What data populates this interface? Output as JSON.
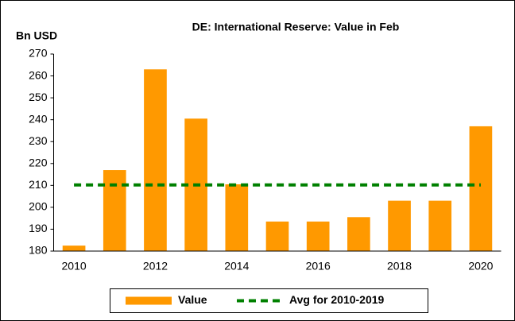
{
  "chart_data": {
    "type": "bar",
    "title": "DE: International Reserve: Value in Feb",
    "y_label": "Bn USD",
    "categories": [
      "2010",
      null,
      "2012",
      null,
      "2014",
      null,
      "2016",
      null,
      "2018",
      null,
      "2020"
    ],
    "series": [
      {
        "name": "Value",
        "type": "bar",
        "color": "#ff9900",
        "values": [
          182.5,
          217,
          263,
          240.5,
          210.5,
          193.5,
          193.5,
          195.5,
          203,
          203,
          237
        ]
      },
      {
        "name": "Avg for 2010-2019",
        "type": "line",
        "dashed": true,
        "color": "#008000",
        "values": [
          210.2,
          210.2,
          210.2,
          210.2,
          210.2,
          210.2,
          210.2,
          210.2,
          210.2,
          210.2,
          210.2
        ]
      }
    ],
    "ylim": [
      180,
      270
    ],
    "yticks": [
      180,
      190,
      200,
      210,
      220,
      230,
      240,
      250,
      260,
      270
    ],
    "legend": "bottom"
  }
}
